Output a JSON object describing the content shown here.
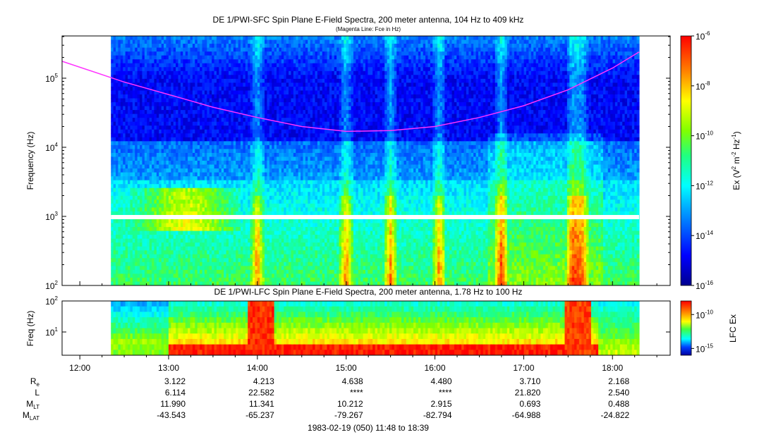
{
  "chart_data": [
    {
      "type": "heatmap",
      "title": "DE 1/PWI-SFC  Spin Plane E-Field Spectra, 200 meter antenna, 104 Hz to 409 kHz",
      "subtitle": "(Magenta Line: Fce in Hz)",
      "ylabel": "Frequency (Hz)",
      "yscale": "log",
      "ylim": [
        100,
        409000
      ],
      "yticks": [
        {
          "value": 100,
          "base": "10",
          "exp": "2"
        },
        {
          "value": 1000,
          "base": "10",
          "exp": "3"
        },
        {
          "value": 10000,
          "base": "10",
          "exp": "4"
        },
        {
          "value": 100000,
          "base": "10",
          "exp": "5"
        }
      ],
      "colorbar": {
        "label_prefix": "Ex (V",
        "label_sup1": "2",
        "label_mid": " m",
        "label_sup2": "-2",
        "label_mid2": " Hz",
        "label_sup3": "-1",
        "label_suffix": ")",
        "scale": "log",
        "range": [
          1e-16,
          1e-06
        ],
        "ticks": [
          {
            "value": 1e-06,
            "base": "10",
            "exp": "-6"
          },
          {
            "value": 1e-08,
            "base": "10",
            "exp": "-8"
          },
          {
            "value": 1e-10,
            "base": "10",
            "exp": "-10"
          },
          {
            "value": 1e-12,
            "base": "10",
            "exp": "-12"
          },
          {
            "value": 1e-14,
            "base": "10",
            "exp": "-14"
          },
          {
            "value": 1e-16,
            "base": "10",
            "exp": "-16"
          }
        ]
      },
      "fce_line": {
        "color": "#ff33ff",
        "x_hours": [
          11.75,
          12.5,
          13.0,
          13.5,
          14.0,
          14.5,
          15.0,
          15.5,
          16.0,
          16.5,
          17.0,
          17.5,
          18.0,
          18.3
        ],
        "y_hz": [
          185000,
          88000,
          58000,
          38000,
          27000,
          20000,
          17000,
          17500,
          20000,
          27000,
          40000,
          68000,
          140000,
          240000
        ]
      }
    },
    {
      "type": "heatmap",
      "title": "DE 1/PWI-LFC  Spin Plane E-Field Spectra, 200 meter antenna, 1.78 Hz to 100 Hz",
      "ylabel": "Freq (Hz)",
      "yscale": "log",
      "ylim": [
        1.78,
        100
      ],
      "yticks": [
        {
          "value": 10,
          "base": "10",
          "exp": "1"
        },
        {
          "value": 100,
          "base": "10",
          "exp": "2"
        }
      ],
      "colorbar": {
        "label": "LFC Ex",
        "scale": "log",
        "range": [
          1e-16,
          1e-08
        ],
        "ticks": [
          {
            "value": 1e-10,
            "base": "10",
            "exp": "-10"
          },
          {
            "value": 1e-15,
            "base": "10",
            "exp": "-15"
          }
        ]
      }
    }
  ],
  "time_axis": {
    "xlim_hours": [
      11.8,
      18.65
    ],
    "ticks": [
      {
        "hour": 12,
        "label": "12:00"
      },
      {
        "hour": 13,
        "label": "13:00"
      },
      {
        "hour": 14,
        "label": "14:00"
      },
      {
        "hour": 15,
        "label": "15:00"
      },
      {
        "hour": 16,
        "label": "16:00"
      },
      {
        "hour": 17,
        "label": "17:00"
      },
      {
        "hour": 18,
        "label": "18:00"
      }
    ]
  },
  "ephemeris": {
    "rows": [
      {
        "label": "R",
        "sub": "e",
        "values": [
          "3.122",
          "4.213",
          "4.638",
          "4.480",
          "3.710",
          "2.168"
        ]
      },
      {
        "label": "L",
        "sub": "",
        "values": [
          "6.114",
          "22.582",
          "****",
          "****",
          "21.820",
          "2.540"
        ]
      },
      {
        "label": "M",
        "sub": "LT",
        "values": [
          "11.990",
          "11.341",
          "10.212",
          "2.915",
          "0.693",
          "0.488"
        ]
      },
      {
        "label": "M",
        "sub": "LAT",
        "values": [
          "-43.543",
          "-65.237",
          "-79.267",
          "-82.794",
          "-64.988",
          "-24.822"
        ]
      }
    ],
    "column_hours": [
      13,
      14,
      15,
      16,
      17,
      18
    ]
  },
  "footer": "1983-02-19 (050) 11:48 to 18:39"
}
